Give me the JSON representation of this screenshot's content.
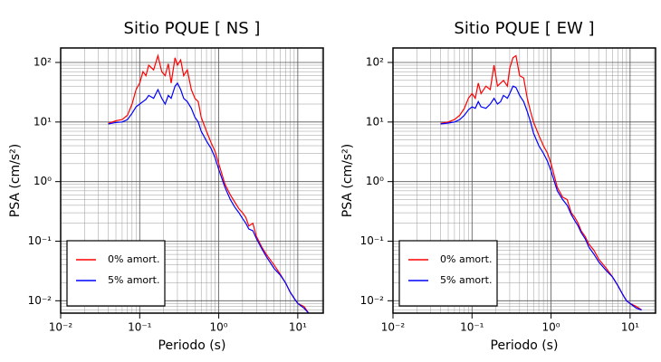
{
  "chart_data": [
    {
      "type": "line",
      "title": "Sitio PQUE [ NS ]",
      "x_label": "Periodo (s)",
      "y_label": "PSA (cm/s²)",
      "log_x": true,
      "log_y": true,
      "grid": true,
      "minor_grid": true,
      "legend": "lower left",
      "xlim": [
        0.01,
        21
      ],
      "ylim": [
        0.0062,
        175
      ],
      "xticks": [
        {
          "value": 0.01,
          "label": "10⁻²"
        },
        {
          "value": 0.1,
          "label": "10⁻¹"
        },
        {
          "value": 1,
          "label": "10⁰"
        },
        {
          "value": 10,
          "label": "10¹"
        }
      ],
      "yticks": [
        {
          "value": 0.01,
          "label": "10⁻²"
        },
        {
          "value": 0.1,
          "label": "10⁻¹"
        },
        {
          "value": 1,
          "label": "10⁰"
        },
        {
          "value": 10,
          "label": "10¹"
        },
        {
          "value": 100,
          "label": "10²"
        }
      ],
      "x": [
        0.04,
        0.05,
        0.06,
        0.07,
        0.08,
        0.09,
        0.1,
        0.11,
        0.12,
        0.13,
        0.15,
        0.17,
        0.19,
        0.21,
        0.23,
        0.25,
        0.28,
        0.3,
        0.33,
        0.36,
        0.4,
        0.45,
        0.5,
        0.55,
        0.6,
        0.7,
        0.8,
        0.9,
        1.0,
        1.2,
        1.4,
        1.6,
        1.8,
        2.0,
        2.2,
        2.4,
        2.7,
        3.0,
        3.5,
        4,
        5,
        6,
        7,
        8,
        9,
        10,
        12,
        14
      ],
      "series": [
        {
          "name": "0% amort.",
          "color": "#ff0000",
          "values": [
            9.5,
            10.5,
            11,
            13,
            20,
            35,
            45,
            70,
            60,
            90,
            75,
            130,
            70,
            60,
            95,
            45,
            120,
            90,
            110,
            60,
            75,
            35,
            25,
            22,
            12,
            7,
            4.5,
            3.2,
            2.0,
            0.9,
            0.6,
            0.45,
            0.35,
            0.3,
            0.25,
            0.18,
            0.2,
            0.12,
            0.08,
            0.06,
            0.04,
            0.028,
            0.02,
            0.014,
            0.011,
            0.009,
            0.008,
            0.006
          ]
        },
        {
          "name": "5% amort.",
          "color": "#0000ff",
          "values": [
            9.3,
            9.8,
            10,
            11,
            14,
            18,
            20,
            22,
            24,
            28,
            25,
            35,
            25,
            20,
            28,
            25,
            40,
            45,
            35,
            25,
            22,
            17,
            12,
            10,
            7,
            4.8,
            3.6,
            2.5,
            1.6,
            0.8,
            0.5,
            0.37,
            0.3,
            0.24,
            0.2,
            0.16,
            0.15,
            0.11,
            0.075,
            0.055,
            0.035,
            0.027,
            0.02,
            0.014,
            0.011,
            0.009,
            0.0075,
            0.006
          ]
        }
      ]
    },
    {
      "type": "line",
      "title": "Sitio PQUE [ EW ]",
      "x_label": "Periodo (s)",
      "y_label": "PSA (cm/s²)",
      "log_x": true,
      "log_y": true,
      "grid": true,
      "minor_grid": true,
      "legend": "lower left",
      "xlim": [
        0.01,
        21
      ],
      "ylim": [
        0.0062,
        175
      ],
      "xticks": [
        {
          "value": 0.01,
          "label": "10⁻²"
        },
        {
          "value": 0.1,
          "label": "10⁻¹"
        },
        {
          "value": 1,
          "label": "10⁰"
        },
        {
          "value": 10,
          "label": "10¹"
        }
      ],
      "yticks": [
        {
          "value": 0.01,
          "label": "10⁻²"
        },
        {
          "value": 0.1,
          "label": "10⁻¹"
        },
        {
          "value": 1,
          "label": "10⁰"
        },
        {
          "value": 10,
          "label": "10¹"
        },
        {
          "value": 100,
          "label": "10²"
        }
      ],
      "x": [
        0.04,
        0.05,
        0.06,
        0.07,
        0.08,
        0.09,
        0.1,
        0.11,
        0.12,
        0.13,
        0.15,
        0.17,
        0.19,
        0.21,
        0.23,
        0.25,
        0.28,
        0.3,
        0.33,
        0.36,
        0.4,
        0.45,
        0.5,
        0.55,
        0.6,
        0.7,
        0.8,
        0.9,
        1.0,
        1.2,
        1.4,
        1.6,
        1.8,
        2.0,
        2.2,
        2.4,
        2.7,
        3.0,
        3.5,
        4,
        5,
        6,
        7,
        8,
        9,
        10,
        12,
        14
      ],
      "series": [
        {
          "name": "0% amort.",
          "color": "#ff0000",
          "values": [
            9.5,
            10,
            11,
            13,
            17,
            25,
            30,
            25,
            45,
            30,
            40,
            35,
            90,
            40,
            45,
            50,
            40,
            80,
            120,
            130,
            60,
            55,
            25,
            15,
            10,
            6,
            4,
            3,
            2.0,
            0.8,
            0.55,
            0.5,
            0.3,
            0.25,
            0.2,
            0.15,
            0.12,
            0.09,
            0.07,
            0.05,
            0.035,
            0.025,
            0.018,
            0.013,
            0.01,
            0.009,
            0.008,
            0.007
          ]
        },
        {
          "name": "5% amort.",
          "color": "#0000ff",
          "values": [
            9.3,
            9.6,
            10,
            11,
            13,
            16,
            18,
            17,
            22,
            18,
            17,
            20,
            25,
            20,
            22,
            28,
            25,
            30,
            40,
            38,
            28,
            22,
            15,
            10,
            6.5,
            4,
            3,
            2.2,
            1.5,
            0.7,
            0.5,
            0.4,
            0.28,
            0.22,
            0.18,
            0.14,
            0.11,
            0.08,
            0.06,
            0.045,
            0.032,
            0.025,
            0.018,
            0.013,
            0.01,
            0.009,
            0.0075,
            0.007
          ]
        }
      ]
    }
  ]
}
